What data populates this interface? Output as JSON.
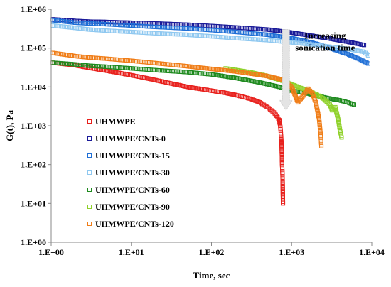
{
  "chart_data": {
    "type": "scatter",
    "xlabel": "Time, sec",
    "ylabel": "G(t), Pa",
    "xscale": "log",
    "yscale": "log",
    "xlim": [
      1,
      10000
    ],
    "ylim": [
      1,
      1000000
    ],
    "x_ticks": [
      1,
      10,
      100,
      1000,
      10000
    ],
    "y_ticks": [
      1,
      10,
      100,
      1000,
      10000,
      100000,
      1000000
    ],
    "x_tick_labels": [
      "1.E+00",
      "1.E+01",
      "1.E+02",
      "1.E+03",
      "1.E+04"
    ],
    "y_tick_labels": [
      "1.E+00",
      "1.E+01",
      "1.E+02",
      "1.E+03",
      "1.E+04",
      "1.E+05",
      "1.E+06"
    ],
    "grid": false,
    "legend_position": "left",
    "marker": "open-square",
    "annotation": {
      "lines": [
        "Increasing",
        "sonication time"
      ],
      "arrow": "down",
      "x": 850,
      "y_from": 300000,
      "y_to": 2500
    },
    "series": [
      {
        "name": "UHMWPE",
        "color": "#e8201c",
        "points": [
          [
            1.05,
            42000
          ],
          [
            2,
            36000
          ],
          [
            3,
            31000
          ],
          [
            4,
            28000
          ],
          [
            5,
            26000
          ],
          [
            7,
            23000
          ],
          [
            10,
            20000
          ],
          [
            15,
            17000
          ],
          [
            20,
            15000
          ],
          [
            30,
            12500
          ],
          [
            50,
            10000
          ],
          [
            70,
            9000
          ],
          [
            100,
            8000
          ],
          [
            150,
            7000
          ],
          [
            200,
            6200
          ],
          [
            300,
            5000
          ],
          [
            400,
            4000
          ],
          [
            500,
            3000
          ],
          [
            600,
            2200
          ],
          [
            650,
            1800
          ],
          [
            700,
            1400
          ],
          [
            720,
            1000
          ],
          [
            730,
            750
          ],
          [
            740,
            500
          ],
          [
            750,
            300
          ],
          [
            760,
            100
          ],
          [
            770,
            50
          ],
          [
            780,
            10
          ]
        ]
      },
      {
        "name": "UHMWPE/CNTs-0",
        "color": "#1a1a99",
        "points": [
          [
            1.05,
            550000
          ],
          [
            2,
            500000
          ],
          [
            3,
            480000
          ],
          [
            5,
            470000
          ],
          [
            7,
            460000
          ],
          [
            10,
            450000
          ],
          [
            20,
            430000
          ],
          [
            50,
            400000
          ],
          [
            100,
            370000
          ],
          [
            200,
            340000
          ],
          [
            500,
            300000
          ],
          [
            1000,
            250000
          ],
          [
            2000,
            200000
          ],
          [
            3000,
            175000
          ],
          [
            5000,
            145000
          ],
          [
            8000,
            120000
          ]
        ]
      },
      {
        "name": "UHMWPE/CNTs-15",
        "color": "#1f6fd6",
        "points": [
          [
            1.05,
            520000
          ],
          [
            2,
            450000
          ],
          [
            3,
            430000
          ],
          [
            5,
            410000
          ],
          [
            10,
            380000
          ],
          [
            20,
            350000
          ],
          [
            50,
            320000
          ],
          [
            100,
            290000
          ],
          [
            200,
            260000
          ],
          [
            500,
            220000
          ],
          [
            1000,
            180000
          ],
          [
            2000,
            130000
          ],
          [
            3000,
            100000
          ],
          [
            5000,
            70000
          ],
          [
            7000,
            52000
          ],
          [
            9000,
            40000
          ]
        ]
      },
      {
        "name": "UHMWPE/CNTs-30",
        "color": "#8fc8f0",
        "points": [
          [
            1.05,
            380000
          ],
          [
            2,
            330000
          ],
          [
            3,
            300000
          ],
          [
            5,
            280000
          ],
          [
            10,
            260000
          ],
          [
            20,
            240000
          ],
          [
            50,
            220000
          ],
          [
            100,
            200000
          ],
          [
            200,
            180000
          ],
          [
            500,
            160000
          ],
          [
            1000,
            140000
          ],
          [
            2000,
            120000
          ],
          [
            3000,
            108000
          ],
          [
            5000,
            95000
          ],
          [
            8000,
            80000
          ],
          [
            9000,
            65000
          ]
        ]
      },
      {
        "name": "UHMWPE/CNTs-60",
        "color": "#1e8a1e",
        "points": [
          [
            1.05,
            42000
          ],
          [
            2,
            38000
          ],
          [
            3,
            35000
          ],
          [
            5,
            33000
          ],
          [
            10,
            30000
          ],
          [
            20,
            27000
          ],
          [
            50,
            24000
          ],
          [
            100,
            21000
          ],
          [
            200,
            17000
          ],
          [
            400,
            13000
          ],
          [
            700,
            10000
          ],
          [
            1000,
            8000
          ],
          [
            1500,
            7000
          ],
          [
            2000,
            6000
          ],
          [
            3000,
            5000
          ],
          [
            4000,
            4500
          ],
          [
            5000,
            4000
          ],
          [
            6000,
            3500
          ]
        ]
      },
      {
        "name": "UHMWPE/CNTs-90",
        "color": "#8fd12a",
        "points": [
          [
            150,
            30000
          ],
          [
            300,
            24000
          ],
          [
            500,
            19000
          ],
          [
            800,
            14000
          ],
          [
            1200,
            10000
          ],
          [
            1600,
            8000
          ],
          [
            2000,
            6500
          ],
          [
            2500,
            5000
          ],
          [
            3000,
            3500
          ],
          [
            3200,
            2500
          ],
          [
            3500,
            3000
          ],
          [
            3800,
            1500
          ],
          [
            4000,
            800
          ],
          [
            4200,
            500
          ]
        ]
      },
      {
        "name": "UHMWPE/CNTs-120",
        "color": "#f07d17",
        "points": [
          [
            1.05,
            75000
          ],
          [
            2,
            62000
          ],
          [
            3,
            57000
          ],
          [
            5,
            53000
          ],
          [
            10,
            47000
          ],
          [
            20,
            41000
          ],
          [
            50,
            34000
          ],
          [
            100,
            29000
          ],
          [
            200,
            25000
          ],
          [
            500,
            19000
          ],
          [
            800,
            15000
          ],
          [
            1000,
            10000
          ],
          [
            1200,
            4000
          ],
          [
            1400,
            6000
          ],
          [
            1600,
            9000
          ],
          [
            1800,
            7000
          ],
          [
            2000,
            4000
          ],
          [
            2200,
            1500
          ],
          [
            2300,
            600
          ],
          [
            2350,
            300
          ]
        ]
      }
    ]
  }
}
